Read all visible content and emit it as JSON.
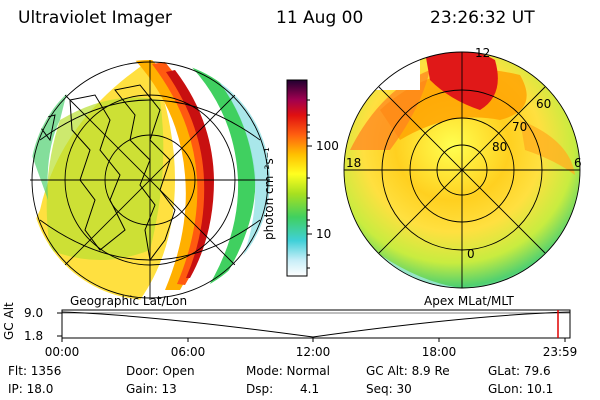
{
  "header": {
    "title": "Ultraviolet Imager",
    "date": "11 Aug 00",
    "time": "23:26:32 UT"
  },
  "colorbar": {
    "unit_label": "photon cm⁻²s⁻¹",
    "ticks": [
      "100",
      "10"
    ]
  },
  "left_panel": {
    "label": "Geographic Lat/Lon"
  },
  "right_panel": {
    "label": "Apex MLat/MLT",
    "mlt_labels": [
      "12",
      "18",
      "6",
      "0"
    ],
    "lat_labels": [
      "60",
      "70",
      "80"
    ]
  },
  "timeline": {
    "axis_label": "GC Alt",
    "y_ticks": [
      "9.0",
      "1.8"
    ],
    "x_ticks": [
      "00:00",
      "06:00",
      "12:00",
      "18:00",
      "23:59"
    ]
  },
  "info": {
    "flt": "Flt:  1356",
    "ip": "IP:  18.0",
    "door": "Door:  Open",
    "gain": "Gain:  13",
    "mode": "Mode:  Normal",
    "dsp": "Dsp:",
    "dsp_val": "4.1",
    "gcalt": "GC Alt:  8.9 Re",
    "seq": "Seq:  30",
    "glat": "GLat:  79.6",
    "glon": "GLon:  10.1"
  },
  "colors": {
    "aurora_core": "#d41818",
    "mid": "#ffb000",
    "low": "#3cd070",
    "faint": "#b8e8f8"
  }
}
